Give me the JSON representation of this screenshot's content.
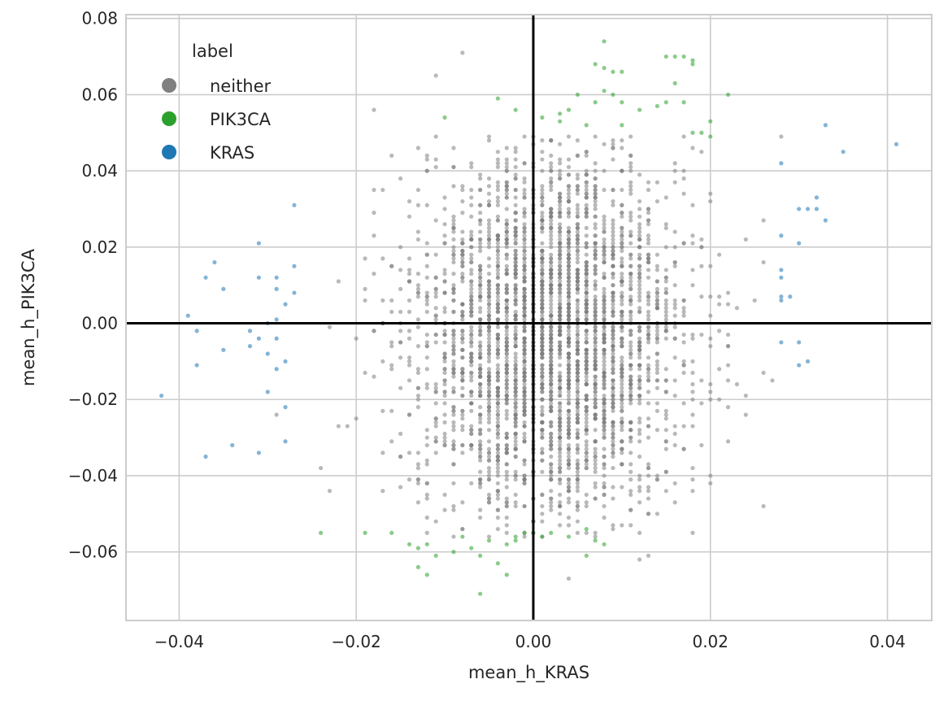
{
  "chart_data": {
    "type": "scatter",
    "title": "",
    "xlabel": "mean_h_KRAS",
    "ylabel": "mean_h_PIK3CA",
    "xlim": [
      -0.046,
      0.045
    ],
    "ylim": [
      -0.078,
      0.081
    ],
    "xticks": [
      -0.04,
      -0.02,
      0.0,
      0.02,
      0.04
    ],
    "xtick_labels": [
      "−0.04",
      "−0.02",
      "0.00",
      "0.02",
      "0.04"
    ],
    "yticks": [
      -0.06,
      -0.04,
      -0.02,
      0.0,
      0.02,
      0.04,
      0.06,
      0.08
    ],
    "ytick_labels": [
      "−0.06",
      "−0.04",
      "−0.02",
      "0.00",
      "0.02",
      "0.04",
      "0.06",
      "0.08"
    ],
    "grid": true,
    "reference_lines": {
      "x": 0.0,
      "y": 0.0
    },
    "legend": {
      "title": "label",
      "placement": "top-left",
      "entries": [
        "neither",
        "PIK3CA",
        "KRAS"
      ]
    },
    "series": [
      {
        "name": "neither",
        "color": "#808080",
        "distribution": {
          "approximate_point_count": 3500,
          "x_mean": 0.002,
          "x_sd": 0.0075,
          "y_mean": -0.003,
          "y_sd": 0.024,
          "x_grid_step": 0.001,
          "y_grid_step": 0.001
        },
        "points": [
          [
            -0.008,
            0.071
          ],
          [
            -0.011,
            0.065
          ],
          [
            0.012,
            -0.062
          ],
          [
            0.013,
            -0.061
          ],
          [
            0.02,
            -0.042
          ],
          [
            0.026,
            -0.048
          ],
          [
            -0.024,
            -0.038
          ],
          [
            -0.023,
            -0.044
          ],
          [
            0.028,
            0.049
          ],
          [
            -0.018,
            0.056
          ],
          [
            0.004,
            -0.067
          ],
          [
            0.026,
            0.027
          ],
          [
            0.027,
            -0.015
          ]
        ]
      },
      {
        "name": "PIK3CA",
        "color": "#2ca02c",
        "points": [
          [
            0.008,
            0.074
          ],
          [
            0.007,
            0.068
          ],
          [
            0.008,
            0.067
          ],
          [
            0.009,
            0.066
          ],
          [
            0.01,
            0.066
          ],
          [
            0.015,
            0.07
          ],
          [
            0.016,
            0.07
          ],
          [
            0.017,
            0.07
          ],
          [
            0.018,
            0.069
          ],
          [
            0.018,
            0.068
          ],
          [
            0.016,
            0.063
          ],
          [
            0.008,
            0.061
          ],
          [
            0.009,
            0.06
          ],
          [
            0.005,
            0.06
          ],
          [
            0.007,
            0.058
          ],
          [
            0.01,
            0.058
          ],
          [
            0.015,
            0.058
          ],
          [
            0.017,
            0.058
          ],
          [
            0.014,
            0.057
          ],
          [
            0.012,
            0.056
          ],
          [
            0.004,
            0.056
          ],
          [
            0.003,
            0.055
          ],
          [
            -0.004,
            0.059
          ],
          [
            -0.01,
            0.054
          ],
          [
            -0.002,
            0.056
          ],
          [
            0.001,
            0.054
          ],
          [
            0.003,
            0.053
          ],
          [
            0.006,
            0.052
          ],
          [
            0.01,
            0.052
          ],
          [
            0.02,
            0.053
          ],
          [
            0.022,
            0.06
          ],
          [
            0.019,
            0.05
          ],
          [
            0.018,
            0.05
          ],
          [
            0.02,
            0.049
          ],
          [
            -0.019,
            -0.055
          ],
          [
            -0.016,
            -0.055
          ],
          [
            -0.014,
            -0.058
          ],
          [
            -0.013,
            -0.059
          ],
          [
            -0.012,
            -0.058
          ],
          [
            -0.011,
            -0.061
          ],
          [
            -0.013,
            -0.064
          ],
          [
            -0.012,
            -0.066
          ],
          [
            -0.009,
            -0.06
          ],
          [
            -0.008,
            -0.056
          ],
          [
            -0.007,
            -0.059
          ],
          [
            -0.006,
            -0.061
          ],
          [
            -0.005,
            -0.057
          ],
          [
            -0.003,
            -0.058
          ],
          [
            -0.002,
            -0.056
          ],
          [
            -0.001,
            -0.055
          ],
          [
            0.001,
            -0.056
          ],
          [
            0.002,
            -0.055
          ],
          [
            0.004,
            -0.056
          ],
          [
            0.006,
            -0.054
          ],
          [
            0.007,
            -0.057
          ],
          [
            0.008,
            -0.058
          ],
          [
            0.006,
            -0.061
          ],
          [
            -0.004,
            -0.063
          ],
          [
            -0.006,
            -0.071
          ],
          [
            -0.003,
            -0.066
          ],
          [
            -0.002,
            -0.057
          ],
          [
            -0.024,
            -0.055
          ],
          [
            0.0,
            -0.055
          ]
        ]
      },
      {
        "name": "KRAS",
        "color": "#1f77b4",
        "points": [
          [
            -0.042,
            -0.019
          ],
          [
            -0.039,
            0.002
          ],
          [
            -0.038,
            -0.002
          ],
          [
            -0.038,
            -0.011
          ],
          [
            -0.037,
            0.012
          ],
          [
            -0.037,
            -0.035
          ],
          [
            -0.036,
            0.016
          ],
          [
            -0.035,
            0.009
          ],
          [
            -0.035,
            -0.007
          ],
          [
            -0.034,
            -0.032
          ],
          [
            -0.032,
            -0.002
          ],
          [
            -0.032,
            -0.006
          ],
          [
            -0.031,
            0.021
          ],
          [
            -0.031,
            0.012
          ],
          [
            -0.031,
            -0.004
          ],
          [
            -0.031,
            -0.034
          ],
          [
            -0.03,
            0.0
          ],
          [
            -0.03,
            -0.008
          ],
          [
            -0.03,
            -0.018
          ],
          [
            -0.029,
            0.012
          ],
          [
            -0.029,
            0.009
          ],
          [
            -0.029,
            0.001
          ],
          [
            -0.029,
            -0.004
          ],
          [
            -0.029,
            -0.012
          ],
          [
            -0.028,
            0.005
          ],
          [
            -0.028,
            -0.01
          ],
          [
            -0.028,
            -0.022
          ],
          [
            -0.028,
            -0.031
          ],
          [
            -0.027,
            0.031
          ],
          [
            -0.027,
            0.015
          ],
          [
            -0.027,
            0.008
          ],
          [
            0.028,
            0.042
          ],
          [
            0.028,
            0.023
          ],
          [
            0.028,
            0.014
          ],
          [
            0.028,
            0.012
          ],
          [
            0.028,
            0.007
          ],
          [
            0.028,
            0.006
          ],
          [
            0.029,
            0.007
          ],
          [
            0.028,
            -0.005
          ],
          [
            0.03,
            0.03
          ],
          [
            0.03,
            0.021
          ],
          [
            0.03,
            -0.005
          ],
          [
            0.03,
            -0.011
          ],
          [
            0.031,
            0.03
          ],
          [
            0.031,
            -0.01
          ],
          [
            0.032,
            0.033
          ],
          [
            0.032,
            0.03
          ],
          [
            0.033,
            0.052
          ],
          [
            0.033,
            0.027
          ],
          [
            0.035,
            0.045
          ],
          [
            0.041,
            0.047
          ]
        ]
      }
    ]
  }
}
